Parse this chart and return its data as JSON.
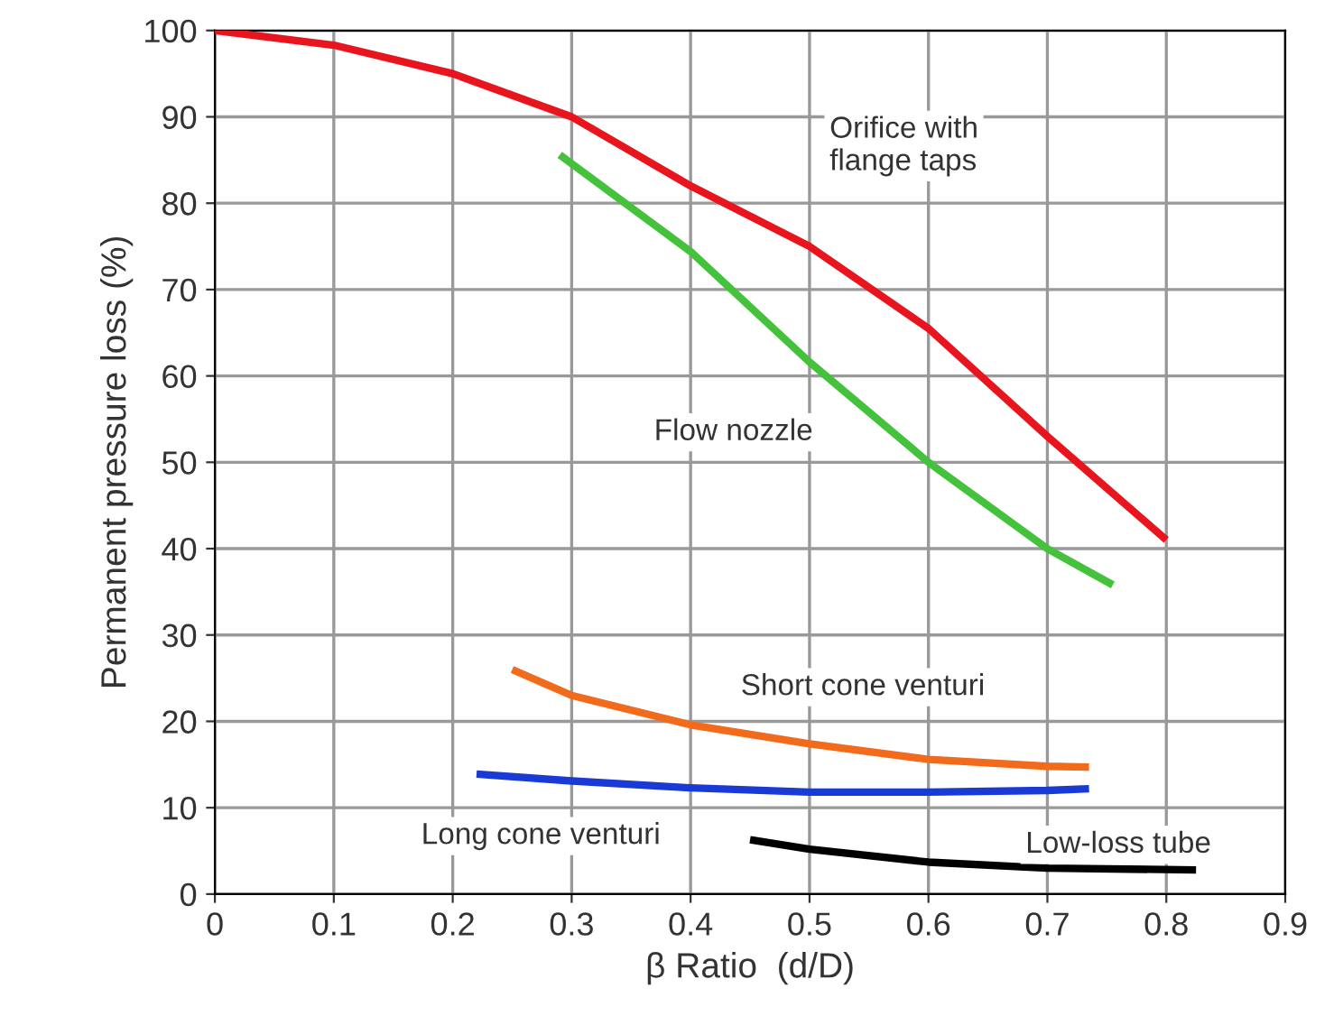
{
  "chart_data": {
    "type": "line",
    "xlabel": "β Ratio  (d/D)",
    "ylabel": "Permanent pressure loss (%)",
    "xlim": [
      0,
      0.9
    ],
    "ylim": [
      0,
      100
    ],
    "xticks": [
      0,
      0.1,
      0.2,
      0.3,
      0.4,
      0.5,
      0.6,
      0.7,
      0.8,
      0.9
    ],
    "yticks": [
      0,
      10,
      20,
      30,
      40,
      50,
      60,
      70,
      80,
      90,
      100
    ],
    "grid": true,
    "marker": "none",
    "line_style": "solid",
    "series": [
      {
        "name": "Orifice with\nflange taps",
        "color": "#e8141e",
        "x": [
          0,
          0.1,
          0.2,
          0.3,
          0.4,
          0.5,
          0.6,
          0.7,
          0.8
        ],
        "values": [
          100,
          98.3,
          95,
          90,
          82,
          75,
          65.5,
          53,
          41
        ]
      },
      {
        "name": "Flow nozzle",
        "color": "#44c23c",
        "x": [
          0.29,
          0.4,
          0.5,
          0.6,
          0.7,
          0.755
        ],
        "values": [
          85.6,
          74.4,
          61.6,
          50,
          40,
          35.8
        ]
      },
      {
        "name": "Short cone venturi",
        "color": "#f26b1d",
        "x": [
          0.25,
          0.3,
          0.4,
          0.5,
          0.6,
          0.7,
          0.735
        ],
        "values": [
          26,
          23,
          19.6,
          17.4,
          15.6,
          14.8,
          14.7
        ]
      },
      {
        "name": "Long cone venturi",
        "color": "#1a3ad6",
        "x": [
          0.22,
          0.3,
          0.4,
          0.5,
          0.6,
          0.7,
          0.735
        ],
        "values": [
          13.9,
          13.1,
          12.3,
          11.8,
          11.8,
          12,
          12.2
        ]
      },
      {
        "name": "Low-loss tube",
        "color": "#000000",
        "x": [
          0.45,
          0.5,
          0.6,
          0.7,
          0.825
        ],
        "values": [
          6.3,
          5.2,
          3.7,
          3,
          2.8
        ]
      }
    ]
  }
}
